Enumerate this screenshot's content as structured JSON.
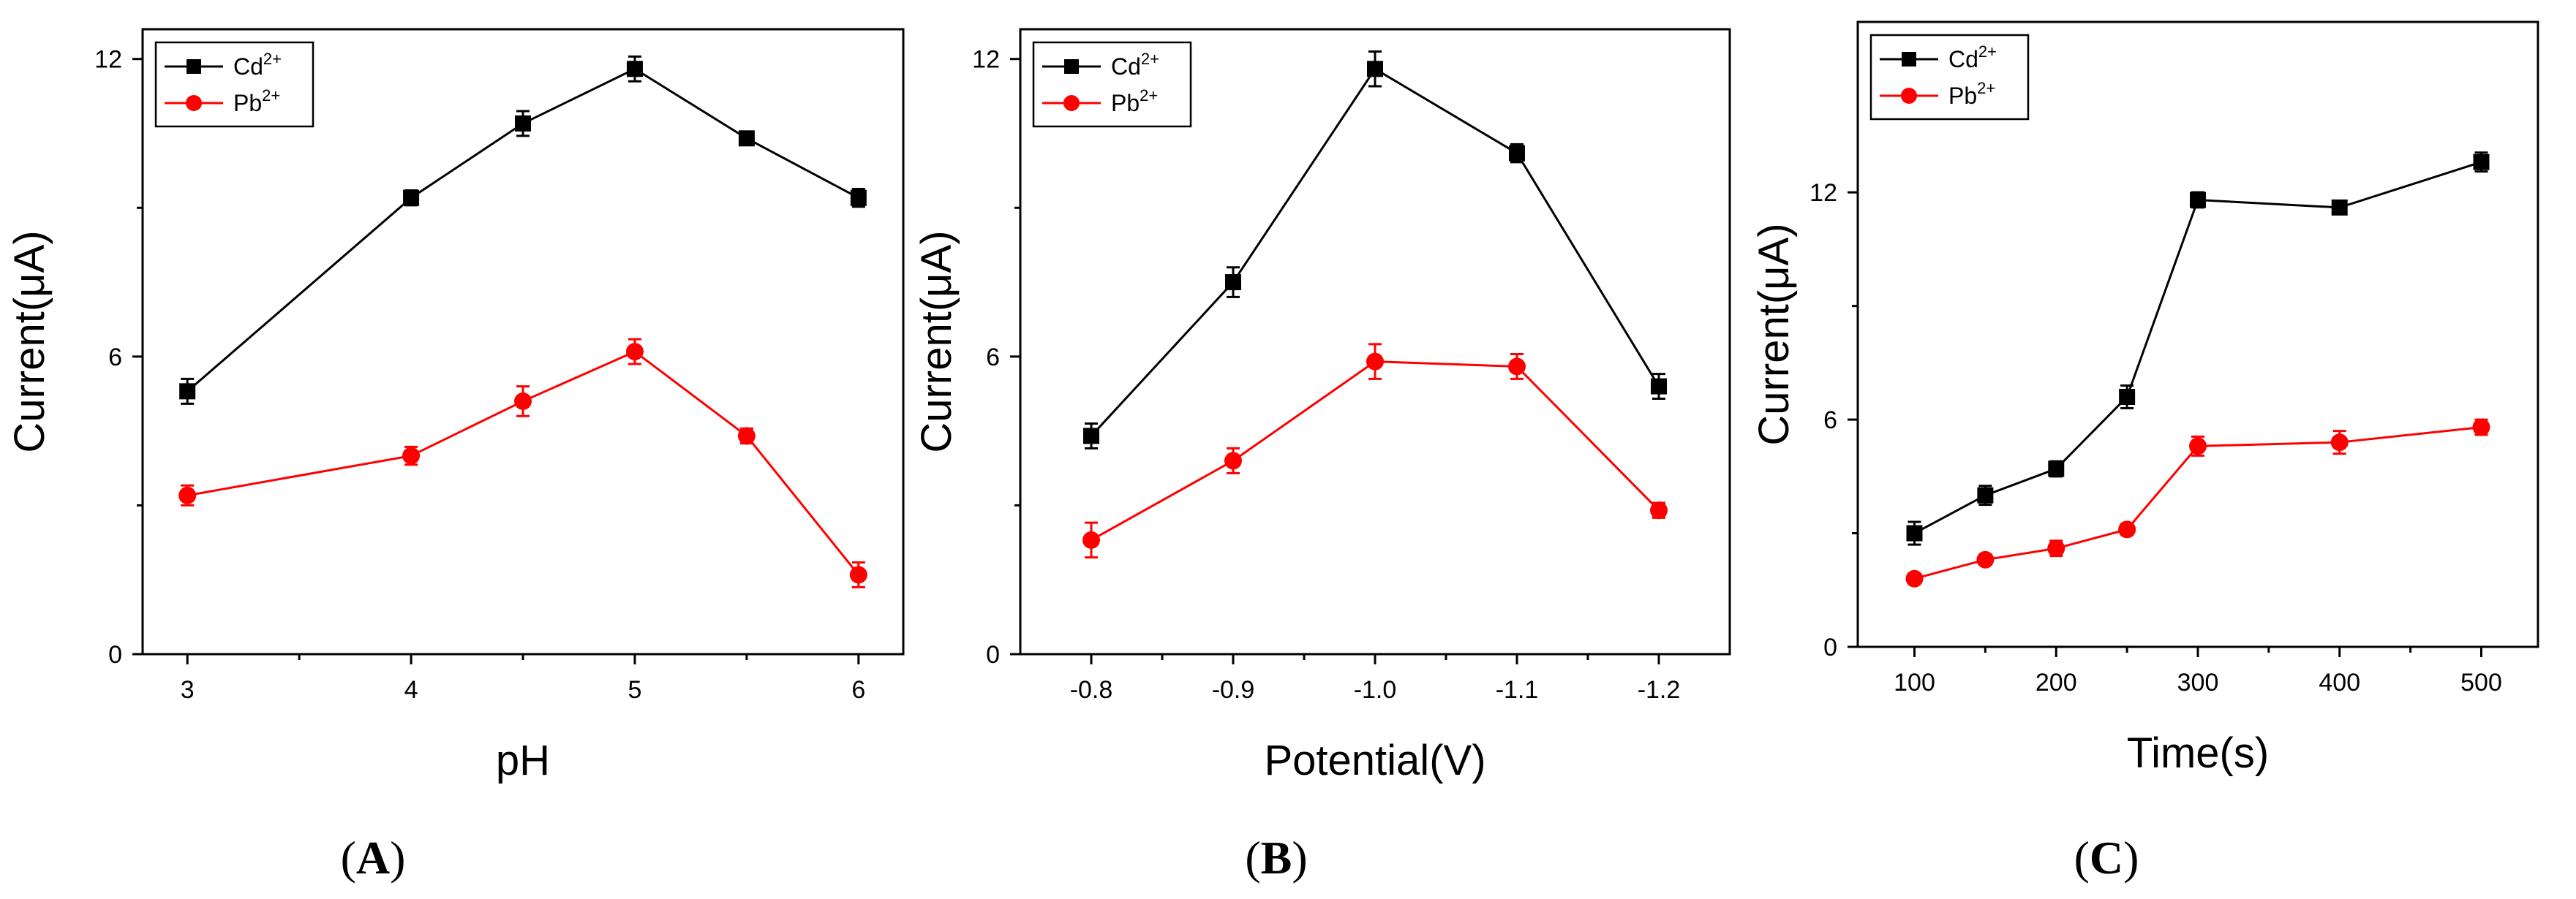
{
  "chart_data": [
    {
      "type": "line",
      "panel_label": "A",
      "xlabel": "pH",
      "ylabel": "Current(μA)",
      "x_ticks": [
        "3",
        "4",
        "5",
        "6"
      ],
      "x_tick_values": [
        3,
        4,
        5,
        6
      ],
      "y_ticks": [
        "0",
        "6",
        "12"
      ],
      "y_tick_values": [
        0,
        6,
        12
      ],
      "xlim": [
        2.8,
        6.2
      ],
      "ylim": [
        0,
        12.6
      ],
      "legend_position": "top-left",
      "x": [
        3,
        4,
        4.5,
        5,
        5.5,
        6
      ],
      "series": [
        {
          "name": "Cd",
          "sup": "2+",
          "color": "#000000",
          "marker": "square",
          "values": [
            5.3,
            9.2,
            10.7,
            11.8,
            10.4,
            9.2
          ],
          "errors": [
            0.25,
            0.15,
            0.25,
            0.25,
            0.12,
            0.18
          ]
        },
        {
          "name": "Pb",
          "sup": "2+",
          "color": "#ff0000",
          "marker": "circle",
          "values": [
            3.2,
            4.0,
            5.1,
            6.1,
            4.4,
            1.6
          ],
          "errors": [
            0.2,
            0.18,
            0.3,
            0.25,
            0.15,
            0.25
          ]
        }
      ]
    },
    {
      "type": "line",
      "panel_label": "B",
      "xlabel": "Potential(V)",
      "ylabel": "Current(μA)",
      "x_ticks": [
        "-0.8",
        "-0.9",
        "-1.0",
        "-1.1",
        "-1.2"
      ],
      "x_tick_values": [
        -0.8,
        -0.9,
        -1.0,
        -1.1,
        -1.2
      ],
      "y_ticks": [
        "0",
        "6",
        "12"
      ],
      "y_tick_values": [
        0,
        6,
        12
      ],
      "xlim": [
        -0.75,
        -1.25
      ],
      "ylim": [
        0,
        12.6
      ],
      "legend_position": "top-left",
      "x": [
        -0.8,
        -0.9,
        -1.0,
        -1.1,
        -1.2
      ],
      "series": [
        {
          "name": "Cd",
          "sup": "2+",
          "color": "#000000",
          "marker": "square",
          "values": [
            4.4,
            7.5,
            11.8,
            10.1,
            5.4
          ],
          "errors": [
            0.25,
            0.3,
            0.35,
            0.18,
            0.25
          ]
        },
        {
          "name": "Pb",
          "sup": "2+",
          "color": "#ff0000",
          "marker": "circle",
          "values": [
            2.3,
            3.9,
            5.9,
            5.8,
            2.9
          ],
          "errors": [
            0.35,
            0.25,
            0.35,
            0.25,
            0.15
          ]
        }
      ]
    },
    {
      "type": "line",
      "panel_label": "C",
      "xlabel": "Time(s)",
      "ylabel": "Current(μA)",
      "x_ticks": [
        "100",
        "200",
        "300",
        "400",
        "500"
      ],
      "x_tick_values": [
        100,
        200,
        300,
        400,
        500
      ],
      "y_ticks": [
        "0",
        "6",
        "12"
      ],
      "y_tick_values": [
        0,
        6,
        12
      ],
      "xlim": [
        60,
        540
      ],
      "ylim": [
        0,
        16.5
      ],
      "legend_position": "top-left",
      "x": [
        100,
        150,
        200,
        250,
        300,
        400,
        500
      ],
      "series": [
        {
          "name": "Cd",
          "sup": "2+",
          "color": "#000000",
          "marker": "square",
          "values": [
            3.0,
            4.0,
            4.7,
            6.6,
            11.8,
            11.6,
            12.8
          ],
          "errors": [
            0.3,
            0.25,
            0.2,
            0.3,
            0.2,
            0.15,
            0.25
          ]
        },
        {
          "name": "Pb",
          "sup": "2+",
          "color": "#ff0000",
          "marker": "circle",
          "values": [
            1.8,
            2.3,
            2.6,
            3.1,
            5.3,
            5.4,
            5.8
          ],
          "errors": [
            0.1,
            0.12,
            0.2,
            0.15,
            0.25,
            0.3,
            0.2
          ]
        }
      ]
    }
  ]
}
